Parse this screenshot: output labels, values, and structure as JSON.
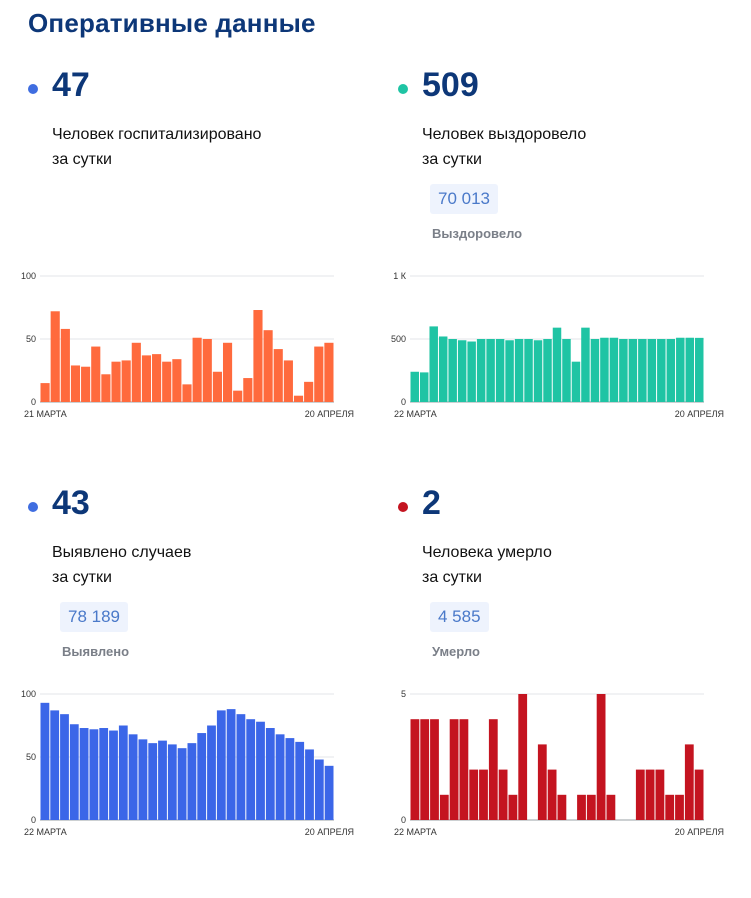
{
  "page_title": "Оперативные данные",
  "panels": [
    {
      "value": "47",
      "desc_line1": "Человек госпитализировано",
      "desc_line2": "за сутки",
      "dot_color": "#3f6de0"
    },
    {
      "value": "509",
      "desc_line1": "Человек выздоровело",
      "desc_line2": "за сутки",
      "total": "70 013",
      "total_label": "Выздоровело",
      "dot_color": "#1fc4a4"
    },
    {
      "value": "43",
      "desc_line1": "Выявлено случаев",
      "desc_line2": "за сутки",
      "total": "78 189",
      "total_label": "Выявлено",
      "dot_color": "#3f6de0"
    },
    {
      "value": "2",
      "desc_line1": "Человека умерло",
      "desc_line2": "за сутки",
      "total": "4 585",
      "total_label": "Умерло",
      "dot_color": "#c41420"
    }
  ],
  "chart_data": [
    {
      "type": "bar",
      "color": "#ff6a3d",
      "ylim": [
        0,
        100
      ],
      "yticks": [
        0,
        50,
        100
      ],
      "ytick_labels": [
        "0",
        "50",
        "100"
      ],
      "x_start_label": "21 МАРТА",
      "x_end_label": "20 АПРЕЛЯ",
      "values": [
        15,
        72,
        58,
        29,
        28,
        44,
        22,
        32,
        33,
        47,
        37,
        38,
        32,
        34,
        14,
        51,
        50,
        24,
        47,
        9,
        19,
        73,
        57,
        42,
        33,
        5,
        16,
        44,
        47
      ]
    },
    {
      "type": "bar",
      "color": "#1fc4a4",
      "ylim": [
        0,
        1000
      ],
      "yticks": [
        0,
        500,
        1000
      ],
      "ytick_labels": [
        "0",
        "500",
        "1 К"
      ],
      "x_start_label": "22 МАРТА",
      "x_end_label": "20 АПРЕЛЯ",
      "values": [
        240,
        235,
        600,
        520,
        500,
        490,
        480,
        500,
        500,
        500,
        490,
        500,
        500,
        490,
        500,
        590,
        500,
        320,
        590,
        500,
        510,
        510,
        500,
        500,
        500,
        500,
        500,
        500,
        510,
        510,
        509
      ]
    },
    {
      "type": "bar",
      "color": "#3b66e8",
      "ylim": [
        0,
        100
      ],
      "yticks": [
        0,
        50,
        100
      ],
      "ytick_labels": [
        "0",
        "50",
        "100"
      ],
      "x_start_label": "22 МАРТА",
      "x_end_label": "20 АПРЕЛЯ",
      "values": [
        93,
        87,
        84,
        76,
        73,
        72,
        73,
        71,
        75,
        68,
        64,
        61,
        63,
        60,
        57,
        61,
        69,
        75,
        87,
        88,
        84,
        80,
        78,
        73,
        68,
        65,
        62,
        56,
        48,
        43
      ]
    },
    {
      "type": "bar",
      "color": "#c41420",
      "ylim": [
        0,
        5
      ],
      "yticks": [
        0,
        5
      ],
      "ytick_labels": [
        "0",
        "5"
      ],
      "x_start_label": "22 МАРТА",
      "x_end_label": "20 АПРЕЛЯ",
      "values": [
        4,
        4,
        4,
        1,
        4,
        4,
        2,
        2,
        4,
        2,
        1,
        5,
        0,
        3,
        2,
        1,
        0,
        1,
        1,
        5,
        1,
        0,
        0,
        2,
        2,
        2,
        1,
        1,
        3,
        2
      ]
    }
  ]
}
